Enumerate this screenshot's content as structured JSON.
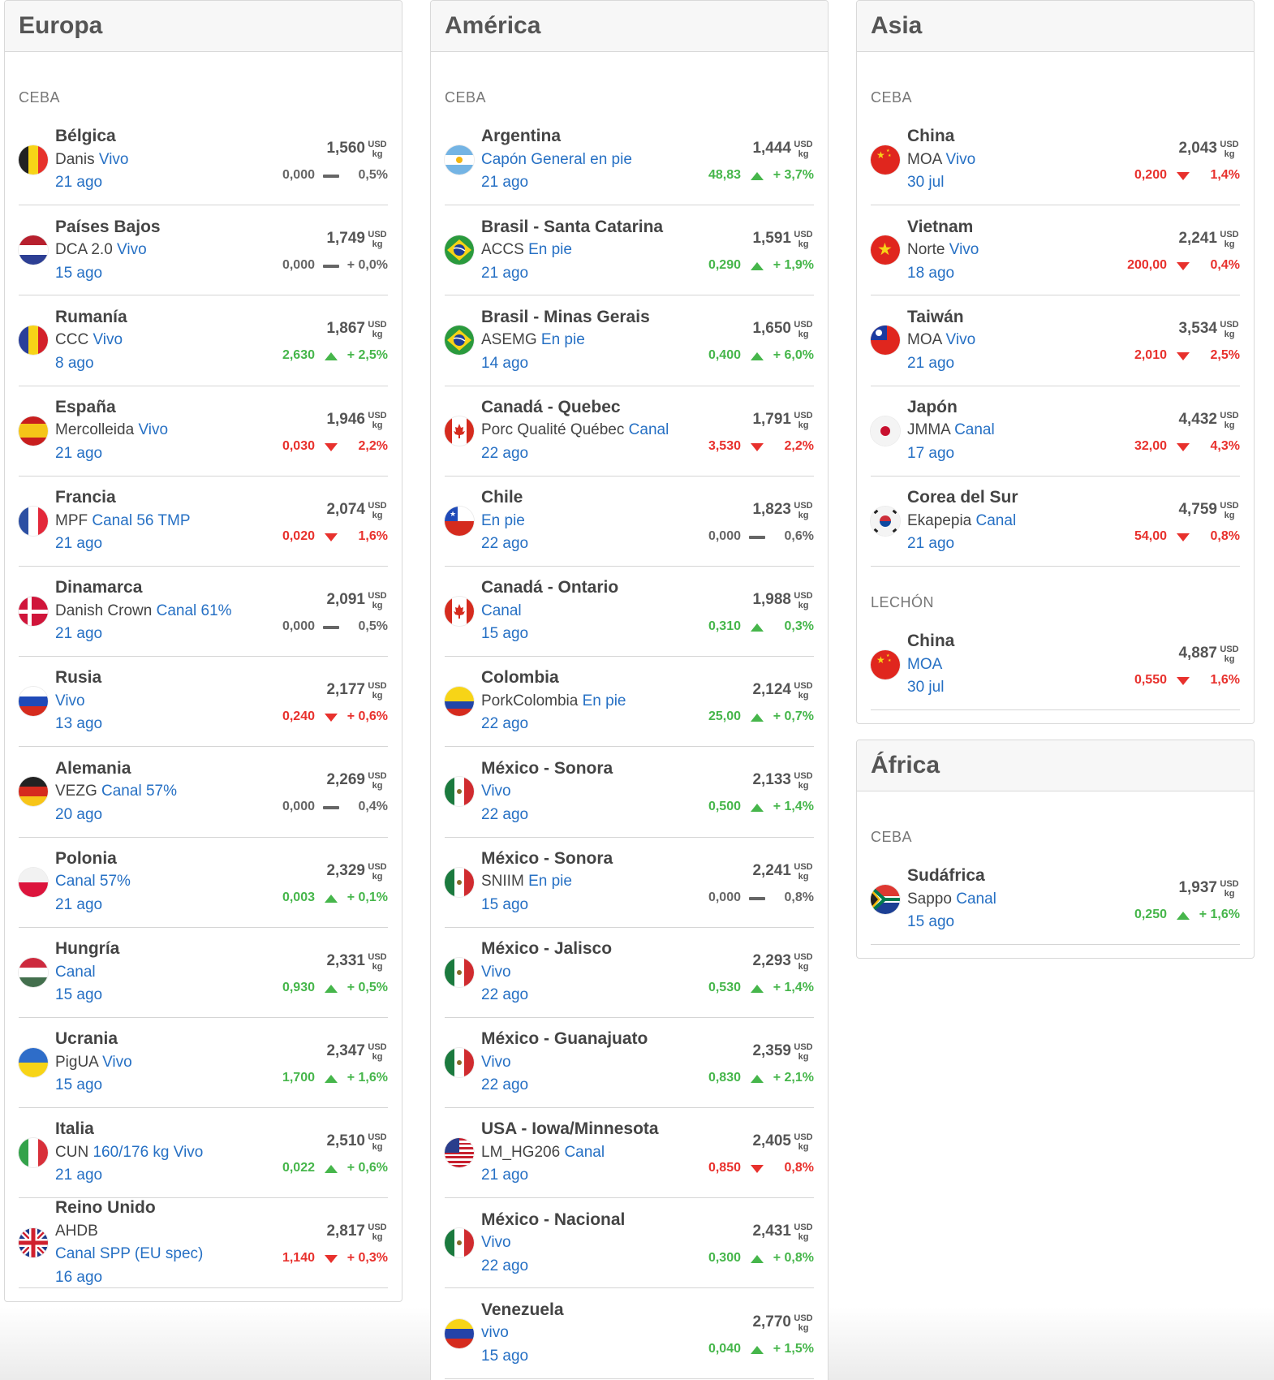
{
  "columns": [
    {
      "title": "Europa",
      "sections": [
        {
          "label": "CEBA",
          "rows": [
            {
              "flag": "belgium-flag",
              "country": "Bélgica",
              "pre": "Danis ",
              "post": "Vivo",
              "date": "21 ago",
              "price": "1,560",
              "unit_top": "USD",
              "unit_bottom": "kg",
              "delta": "0,000",
              "pct": "0,5%",
              "trend": "flat"
            },
            {
              "flag": "netherlands-flag",
              "country": "Países Bajos",
              "pre": "DCA 2.0 ",
              "post": "Vivo",
              "date": "15 ago",
              "price": "1,749",
              "unit_top": "USD",
              "unit_bottom": "kg",
              "delta": "0,000",
              "pct": "+ 0,0%",
              "trend": "flat"
            },
            {
              "flag": "romania-flag",
              "country": "Rumanía",
              "pre": "CCC ",
              "post": "Vivo",
              "date": "8 ago",
              "price": "1,867",
              "unit_top": "USD",
              "unit_bottom": "kg",
              "delta": "2,630",
              "pct": "+ 2,5%",
              "trend": "up"
            },
            {
              "flag": "spain-flag",
              "country": "España",
              "pre": "Mercolleida ",
              "post": "Vivo",
              "date": "21 ago",
              "price": "1,946",
              "unit_top": "USD",
              "unit_bottom": "kg",
              "delta": "0,030",
              "pct": "2,2%",
              "trend": "down"
            },
            {
              "flag": "france-flag",
              "country": "Francia",
              "pre": "MPF ",
              "post": "Canal 56 TMP",
              "date": "21 ago",
              "price": "2,074",
              "unit_top": "USD",
              "unit_bottom": "kg",
              "delta": "0,020",
              "pct": "1,6%",
              "trend": "down"
            },
            {
              "flag": "denmark-flag",
              "country": "Dinamarca",
              "pre": "Danish Crown ",
              "post": "Canal 61%",
              "date": "21 ago",
              "price": "2,091",
              "unit_top": "USD",
              "unit_bottom": "kg",
              "delta": "0,000",
              "pct": "0,5%",
              "trend": "flat"
            },
            {
              "flag": "russia-flag",
              "country": "Rusia",
              "pre": "",
              "post": "Vivo",
              "date": "13 ago",
              "price": "2,177",
              "unit_top": "USD",
              "unit_bottom": "kg",
              "delta": "0,240",
              "pct": "+ 0,6%",
              "trend": "down"
            },
            {
              "flag": "germany-flag",
              "country": "Alemania",
              "pre": "VEZG ",
              "post": "Canal 57%",
              "date": "20 ago",
              "price": "2,269",
              "unit_top": "USD",
              "unit_bottom": "kg",
              "delta": "0,000",
              "pct": "0,4%",
              "trend": "flat"
            },
            {
              "flag": "poland-flag",
              "country": "Polonia",
              "pre": "",
              "post": "Canal 57%",
              "date": "21 ago",
              "price": "2,329",
              "unit_top": "USD",
              "unit_bottom": "kg",
              "delta": "0,003",
              "pct": "+ 0,1%",
              "trend": "up"
            },
            {
              "flag": "hungary-flag",
              "country": "Hungría",
              "pre": "",
              "post": "Canal",
              "date": "15 ago",
              "price": "2,331",
              "unit_top": "USD",
              "unit_bottom": "kg",
              "delta": "0,930",
              "pct": "+ 0,5%",
              "trend": "up"
            },
            {
              "flag": "ukraine-flag",
              "country": "Ucrania",
              "pre": "PigUA ",
              "post": "Vivo",
              "date": "15 ago",
              "price": "2,347",
              "unit_top": "USD",
              "unit_bottom": "kg",
              "delta": "1,700",
              "pct": "+ 1,6%",
              "trend": "up"
            },
            {
              "flag": "italy-flag",
              "country": "Italia",
              "pre": "CUN ",
              "post": "160/176 kg Vivo",
              "date": "21 ago",
              "price": "2,510",
              "unit_top": "USD",
              "unit_bottom": "kg",
              "delta": "0,022",
              "pct": "+ 0,6%",
              "trend": "up"
            },
            {
              "flag": "uk-flag",
              "country": "Reino Unido",
              "pre": "AHDB",
              "post": "",
              "extra": "Canal SPP (EU spec)",
              "date": "16 ago",
              "price": "2,817",
              "unit_top": "USD",
              "unit_bottom": "kg",
              "delta": "1,140",
              "pct": "+ 0,3%",
              "trend": "down"
            }
          ]
        }
      ]
    },
    {
      "title": "América",
      "sections": [
        {
          "label": "CEBA",
          "rows": [
            {
              "flag": "argentina-flag",
              "country": "Argentina",
              "pre": "",
              "post": "Capón General en pie",
              "date": "21 ago",
              "price": "1,444",
              "unit_top": "USD",
              "unit_bottom": "kg",
              "delta": "48,83",
              "pct": "+ 3,7%",
              "trend": "up"
            },
            {
              "flag": "brazil-flag",
              "country": "Brasil - Santa Catarina",
              "pre": "ACCS ",
              "post": "En pie",
              "date": "21 ago",
              "price": "1,591",
              "unit_top": "USD",
              "unit_bottom": "kg",
              "delta": "0,290",
              "pct": "+ 1,9%",
              "trend": "up"
            },
            {
              "flag": "brazil-flag",
              "country": "Brasil - Minas Gerais",
              "pre": "ASEMG ",
              "post": "En pie",
              "date": "14 ago",
              "price": "1,650",
              "unit_top": "USD",
              "unit_bottom": "kg",
              "delta": "0,400",
              "pct": "+ 6,0%",
              "trend": "up"
            },
            {
              "flag": "canada-flag",
              "country": "Canadá - Quebec",
              "pre": "Porc Qualité Québec ",
              "post": "Canal",
              "date": "22 ago",
              "price": "1,791",
              "unit_top": "USD",
              "unit_bottom": "kg",
              "delta": "3,530",
              "pct": "2,2%",
              "trend": "down"
            },
            {
              "flag": "chile-flag",
              "country": "Chile",
              "pre": "",
              "post": "En pie",
              "date": "22 ago",
              "price": "1,823",
              "unit_top": "USD",
              "unit_bottom": "kg",
              "delta": "0,000",
              "pct": "0,6%",
              "trend": "flat"
            },
            {
              "flag": "canada-flag",
              "country": "Canadá - Ontario",
              "pre": "",
              "post": "Canal",
              "date": "15 ago",
              "price": "1,988",
              "unit_top": "USD",
              "unit_bottom": "kg",
              "delta": "0,310",
              "pct": "0,3%",
              "trend": "up"
            },
            {
              "flag": "colombia-flag",
              "country": "Colombia",
              "pre": "PorkColombia ",
              "post": "En pie",
              "date": "22 ago",
              "price": "2,124",
              "unit_top": "USD",
              "unit_bottom": "kg",
              "delta": "25,00",
              "pct": "+ 0,7%",
              "trend": "up"
            },
            {
              "flag": "mexico-flag",
              "country": "México - Sonora",
              "pre": "",
              "post": "Vivo",
              "date": "22 ago",
              "price": "2,133",
              "unit_top": "USD",
              "unit_bottom": "kg",
              "delta": "0,500",
              "pct": "+ 1,4%",
              "trend": "up"
            },
            {
              "flag": "mexico-flag",
              "country": "México - Sonora",
              "pre": "SNIIM ",
              "post": "En pie",
              "date": "15 ago",
              "price": "2,241",
              "unit_top": "USD",
              "unit_bottom": "kg",
              "delta": "0,000",
              "pct": "0,8%",
              "trend": "flat"
            },
            {
              "flag": "mexico-flag",
              "country": "México - Jalisco",
              "pre": "",
              "post": "Vivo",
              "date": "22 ago",
              "price": "2,293",
              "unit_top": "USD",
              "unit_bottom": "kg",
              "delta": "0,530",
              "pct": "+ 1,4%",
              "trend": "up"
            },
            {
              "flag": "mexico-flag",
              "country": "México - Guanajuato",
              "pre": "",
              "post": "Vivo",
              "date": "22 ago",
              "price": "2,359",
              "unit_top": "USD",
              "unit_bottom": "kg",
              "delta": "0,830",
              "pct": "+ 2,1%",
              "trend": "up"
            },
            {
              "flag": "usa-flag",
              "country": "USA - Iowa/Minnesota",
              "pre": "LM_HG206 ",
              "post": "Canal",
              "date": "21 ago",
              "price": "2,405",
              "unit_top": "USD",
              "unit_bottom": "kg",
              "delta": "0,850",
              "pct": "0,8%",
              "trend": "down"
            },
            {
              "flag": "mexico-flag",
              "country": "México - Nacional",
              "pre": "",
              "post": "Vivo",
              "date": "22 ago",
              "price": "2,431",
              "unit_top": "USD",
              "unit_bottom": "kg",
              "delta": "0,300",
              "pct": "+ 0,8%",
              "trend": "up"
            },
            {
              "flag": "venezuela-flag",
              "country": "Venezuela",
              "pre": "",
              "post": "vivo",
              "date": "15 ago",
              "price": "2,770",
              "unit_top": "USD",
              "unit_bottom": "kg",
              "delta": "0,040",
              "pct": "+ 1,5%",
              "trend": "up"
            }
          ]
        }
      ]
    },
    {
      "title": "Asia",
      "sections": [
        {
          "label": "CEBA",
          "rows": [
            {
              "flag": "china-flag",
              "country": "China",
              "pre": "MOA ",
              "post": "Vivo",
              "date": "30 jul",
              "price": "2,043",
              "unit_top": "USD",
              "unit_bottom": "kg",
              "delta": "0,200",
              "pct": "1,4%",
              "trend": "down"
            },
            {
              "flag": "vietnam-flag",
              "country": "Vietnam",
              "pre": "Norte ",
              "post": "Vivo",
              "date": "18 ago",
              "price": "2,241",
              "unit_top": "USD",
              "unit_bottom": "kg",
              "delta": "200,00",
              "pct": "0,4%",
              "trend": "down"
            },
            {
              "flag": "taiwan-flag",
              "country": "Taiwán",
              "pre": "MOA ",
              "post": "Vivo",
              "date": "21 ago",
              "price": "3,534",
              "unit_top": "USD",
              "unit_bottom": "kg",
              "delta": "2,010",
              "pct": "2,5%",
              "trend": "down"
            },
            {
              "flag": "japan-flag",
              "country": "Japón",
              "pre": "JMMA ",
              "post": "Canal",
              "date": "17 ago",
              "price": "4,432",
              "unit_top": "USD",
              "unit_bottom": "kg",
              "delta": "32,00",
              "pct": "4,3%",
              "trend": "down"
            },
            {
              "flag": "south-korea-flag",
              "country": "Corea del Sur",
              "pre": "Ekapepia ",
              "post": "Canal",
              "date": "21 ago",
              "price": "4,759",
              "unit_top": "USD",
              "unit_bottom": "kg",
              "delta": "54,00",
              "pct": "0,8%",
              "trend": "down"
            }
          ]
        },
        {
          "label": "LECHÓN",
          "rows": [
            {
              "flag": "china-flag",
              "country": "China",
              "pre": "",
              "post": "MOA",
              "date": "30 jul",
              "price": "4,887",
              "unit_top": "USD",
              "unit_bottom": "kg",
              "delta": "0,550",
              "pct": "1,6%",
              "trend": "down"
            }
          ]
        }
      ]
    },
    {
      "title": "África",
      "sections": [
        {
          "label": "CEBA",
          "rows": [
            {
              "flag": "south-africa-flag",
              "country": "Sudáfrica",
              "pre": "Sappo ",
              "post": "Canal",
              "date": "15 ago",
              "price": "1,937",
              "unit_top": "USD",
              "unit_bottom": "kg",
              "delta": "0,250",
              "pct": "+ 1,6%",
              "trend": "up"
            }
          ]
        }
      ]
    }
  ]
}
